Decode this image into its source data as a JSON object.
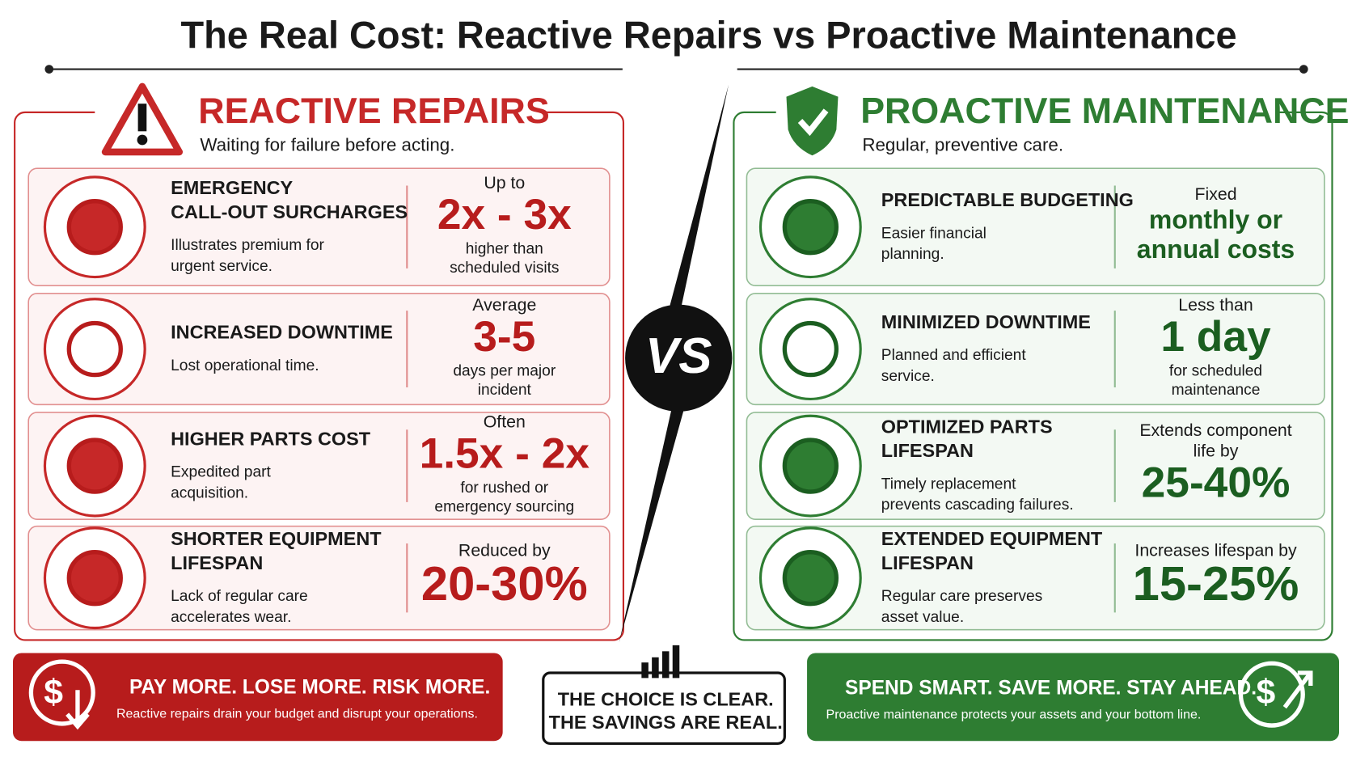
{
  "title": "The Real Cost: Reactive Repairs vs Proactive Maintenance",
  "left": {
    "heading": "REACTIVE REPAIRS",
    "subtitle": "Waiting for failure before acting.",
    "items": [
      {
        "title": [
          "EMERGENCY",
          "CALL-OUT SURCHARGES"
        ],
        "desc": [
          "Illustrates premium for",
          "urgent service."
        ],
        "pre": [
          "Up to"
        ],
        "stat": [
          "2x - 3x"
        ],
        "post": [
          "higher than",
          "scheduled visits"
        ]
      },
      {
        "title": [
          "INCREASED DOWNTIME"
        ],
        "desc": [
          "Lost operational time."
        ],
        "pre": [
          "Average"
        ],
        "stat": [
          "3-5"
        ],
        "post": [
          "days per major",
          "incident"
        ]
      },
      {
        "title": [
          "HIGHER PARTS COST"
        ],
        "desc": [
          "Expedited part",
          "acquisition."
        ],
        "pre": [
          "Often"
        ],
        "stat": [
          "1.5x - 2x"
        ],
        "post": [
          "for rushed or",
          "emergency sourcing"
        ]
      },
      {
        "title": [
          "SHORTER EQUIPMENT",
          "LIFESPAN"
        ],
        "desc": [
          "Lack of regular care",
          "accelerates wear."
        ],
        "pre": [
          "Reduced by"
        ],
        "stat": [
          "20-30%"
        ],
        "post": []
      }
    ],
    "footer": {
      "headline": "PAY MORE. LOSE MORE. RISK MORE.",
      "text": "Reactive repairs drain your budget and disrupt your operations."
    }
  },
  "center": {
    "vs": "VS",
    "choice": [
      "THE CHOICE IS CLEAR.",
      "THE SAVINGS ARE REAL."
    ]
  },
  "right": {
    "heading": "PROACTIVE MAINTENANCE",
    "subtitle": "Regular, preventive care.",
    "items": [
      {
        "title": [
          "PREDICTABLE BUDGETING"
        ],
        "desc": [
          "Easier financial",
          "planning."
        ],
        "pre": [
          "Fixed"
        ],
        "stat": [
          "monthly or",
          "annual costs"
        ],
        "post": []
      },
      {
        "title": [
          "MINIMIZED DOWNTIME"
        ],
        "desc": [
          "Planned and efficient",
          "service."
        ],
        "pre": [
          "Less than"
        ],
        "stat": [
          "1 day"
        ],
        "post": [
          "for scheduled",
          "maintenance"
        ]
      },
      {
        "title": [
          "OPTIMIZED PARTS",
          "LIFESPAN"
        ],
        "desc": [
          "Timely replacement",
          "prevents cascading failures."
        ],
        "pre": [
          "Extends component",
          "life by"
        ],
        "stat": [
          "25-40%"
        ],
        "post": []
      },
      {
        "title": [
          "EXTENDED EQUIPMENT",
          "LIFESPAN"
        ],
        "desc": [
          "Regular care preserves",
          "asset value."
        ],
        "pre": [
          "Increases lifespan by"
        ],
        "stat": [
          "15-25%"
        ],
        "post": []
      }
    ],
    "footer": {
      "headline": "SPEND SMART. SAVE MORE. STAY AHEAD.",
      "text": "Proactive maintenance protects your assets and your bottom line."
    }
  }
}
